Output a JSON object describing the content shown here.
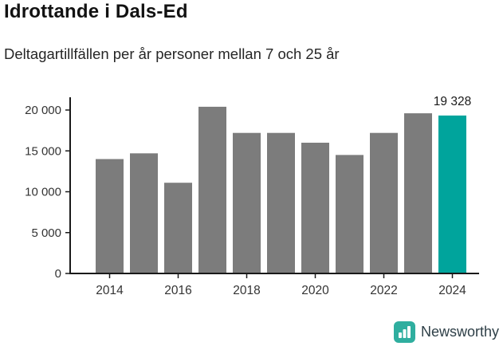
{
  "chart_data": {
    "type": "bar",
    "title": "Idrottande i Dals-Ed",
    "subtitle": "Deltagartillfällen per år personer mellan 7 och 25 år",
    "categories": [
      2014,
      2015,
      2016,
      2017,
      2018,
      2019,
      2020,
      2021,
      2022,
      2023,
      2024
    ],
    "values": [
      14000,
      14700,
      11100,
      20400,
      17200,
      17200,
      16000,
      14500,
      17200,
      19600,
      19328
    ],
    "highlight_index": 10,
    "bar_color": "#7c7c7c",
    "highlight_color": "#00a49c",
    "axis_color": "#1a1a1a",
    "tick_text_color": "#333333",
    "ylim": [
      0,
      21000
    ],
    "yticks": [
      0,
      5000,
      10000,
      15000,
      20000
    ],
    "ytick_labels": [
      "0",
      "5 000",
      "10 000",
      "15 000",
      "20 000"
    ],
    "xtick_indices": [
      0,
      2,
      4,
      6,
      8,
      10
    ],
    "xtick_labels": [
      "2014",
      "2016",
      "2018",
      "2020",
      "2022",
      "2024"
    ],
    "annotation": {
      "text": "19 328",
      "index": 10
    },
    "grid": false,
    "legend": "none"
  },
  "footer": {
    "brand": "Newsworthy",
    "logo_color": "#2fae9f"
  }
}
